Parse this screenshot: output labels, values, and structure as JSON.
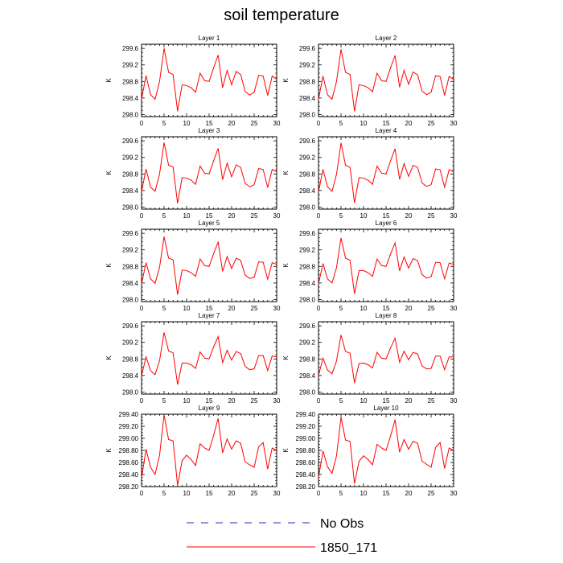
{
  "title": "soil temperature",
  "legend": [
    {
      "label": "No Obs",
      "color": "#2b2bb5",
      "style": "dashed"
    },
    {
      "label": "1850_171",
      "color": "#ff0000",
      "style": "solid"
    }
  ],
  "chart_data": [
    {
      "type": "line",
      "title": "Layer 1",
      "ylabel": "K",
      "xlim": [
        0,
        30
      ],
      "ylim": [
        297.95,
        299.7
      ],
      "xticks": [
        0,
        5,
        10,
        15,
        20,
        25,
        30
      ],
      "yticks": [
        298.0,
        298.4,
        298.8,
        299.2,
        299.6
      ],
      "ytick_labels": [
        "298.0",
        "298.4",
        "298.8",
        "299.2",
        "299.6"
      ],
      "x": [
        0,
        1,
        2,
        3,
        4,
        5,
        6,
        7,
        8,
        9,
        10,
        11,
        12,
        13,
        14,
        15,
        16,
        17,
        18,
        19,
        20,
        21,
        22,
        23,
        24,
        25,
        26,
        27,
        28,
        29,
        30
      ],
      "series": [
        {
          "name": "1850_171",
          "values": [
            298.37,
            298.94,
            298.48,
            298.37,
            298.8,
            299.6,
            299.02,
            298.97,
            298.08,
            298.72,
            298.7,
            298.65,
            298.54,
            299.0,
            298.82,
            298.8,
            299.13,
            299.44,
            298.65,
            299.07,
            298.72,
            299.04,
            298.97,
            298.56,
            298.47,
            298.54,
            298.95,
            298.93,
            298.46,
            298.93,
            298.85
          ]
        }
      ]
    },
    {
      "type": "line",
      "title": "Layer 2",
      "ylabel": "K",
      "xlim": [
        0,
        30
      ],
      "ylim": [
        297.95,
        299.7
      ],
      "xticks": [
        0,
        5,
        10,
        15,
        20,
        25,
        30
      ],
      "yticks": [
        298.0,
        298.4,
        298.8,
        299.2,
        299.6
      ],
      "ytick_labels": [
        "298.0",
        "298.4",
        "298.8",
        "299.2",
        "299.6"
      ],
      "x": [
        0,
        1,
        2,
        3,
        4,
        5,
        6,
        7,
        8,
        9,
        10,
        11,
        12,
        13,
        14,
        15,
        16,
        17,
        18,
        19,
        20,
        21,
        22,
        23,
        24,
        25,
        26,
        27,
        28,
        29,
        30
      ],
      "series": [
        {
          "name": "1850_171",
          "values": [
            298.37,
            298.93,
            298.48,
            298.37,
            298.8,
            299.58,
            299.02,
            298.97,
            298.08,
            298.72,
            298.7,
            298.65,
            298.55,
            299.0,
            298.82,
            298.8,
            299.13,
            299.43,
            298.66,
            299.07,
            298.73,
            299.03,
            298.96,
            298.57,
            298.48,
            298.54,
            298.94,
            298.92,
            298.46,
            298.92,
            298.85
          ]
        }
      ]
    },
    {
      "type": "line",
      "title": "Layer 3",
      "ylabel": "K",
      "xlim": [
        0,
        30
      ],
      "ylim": [
        297.95,
        299.7
      ],
      "xticks": [
        0,
        5,
        10,
        15,
        20,
        25,
        30
      ],
      "yticks": [
        298.0,
        298.4,
        298.8,
        299.2,
        299.6
      ],
      "ytick_labels": [
        "298.0",
        "298.4",
        "298.8",
        "299.2",
        "299.6"
      ],
      "x": [
        0,
        1,
        2,
        3,
        4,
        5,
        6,
        7,
        8,
        9,
        10,
        11,
        12,
        13,
        14,
        15,
        16,
        17,
        18,
        19,
        20,
        21,
        22,
        23,
        24,
        25,
        26,
        27,
        28,
        29,
        30
      ],
      "series": [
        {
          "name": "1850_171",
          "values": [
            298.37,
            298.92,
            298.48,
            298.38,
            298.8,
            299.56,
            299.01,
            298.97,
            298.09,
            298.71,
            298.7,
            298.65,
            298.55,
            298.99,
            298.82,
            298.8,
            299.12,
            299.42,
            298.66,
            299.06,
            298.73,
            299.02,
            298.96,
            298.57,
            298.49,
            298.54,
            298.93,
            298.91,
            298.47,
            298.91,
            298.85
          ]
        }
      ]
    },
    {
      "type": "line",
      "title": "Layer 4",
      "ylabel": "K",
      "xlim": [
        0,
        30
      ],
      "ylim": [
        297.95,
        299.7
      ],
      "xticks": [
        0,
        5,
        10,
        15,
        20,
        25,
        30
      ],
      "yticks": [
        298.0,
        298.4,
        298.8,
        299.2,
        299.6
      ],
      "ytick_labels": [
        "298.0",
        "298.4",
        "298.8",
        "299.2",
        "299.6"
      ],
      "x": [
        0,
        1,
        2,
        3,
        4,
        5,
        6,
        7,
        8,
        9,
        10,
        11,
        12,
        13,
        14,
        15,
        16,
        17,
        18,
        19,
        20,
        21,
        22,
        23,
        24,
        25,
        26,
        27,
        28,
        29,
        30
      ],
      "series": [
        {
          "name": "1850_171",
          "values": [
            298.37,
            298.91,
            298.49,
            298.38,
            298.79,
            299.55,
            299.01,
            298.96,
            298.1,
            298.71,
            298.7,
            298.65,
            298.55,
            298.99,
            298.82,
            298.8,
            299.12,
            299.41,
            298.67,
            299.05,
            298.74,
            299.01,
            298.96,
            298.58,
            298.5,
            298.54,
            298.92,
            298.9,
            298.48,
            298.9,
            298.85
          ]
        }
      ]
    },
    {
      "type": "line",
      "title": "Layer 5",
      "ylabel": "K",
      "xlim": [
        0,
        30
      ],
      "ylim": [
        297.95,
        299.7
      ],
      "xticks": [
        0,
        5,
        10,
        15,
        20,
        25,
        30
      ],
      "yticks": [
        298.0,
        298.4,
        298.8,
        299.2,
        299.6
      ],
      "ytick_labels": [
        "298.0",
        "298.4",
        "298.8",
        "299.2",
        "299.6"
      ],
      "x": [
        0,
        1,
        2,
        3,
        4,
        5,
        6,
        7,
        8,
        9,
        10,
        11,
        12,
        13,
        14,
        15,
        16,
        17,
        18,
        19,
        20,
        21,
        22,
        23,
        24,
        25,
        26,
        27,
        28,
        29,
        30
      ],
      "series": [
        {
          "name": "1850_171",
          "values": [
            298.38,
            298.89,
            298.5,
            298.39,
            298.78,
            299.52,
            299.0,
            298.96,
            298.12,
            298.71,
            298.7,
            298.65,
            298.56,
            298.98,
            298.82,
            298.8,
            299.11,
            299.39,
            298.68,
            299.04,
            298.75,
            299.0,
            298.95,
            298.59,
            298.51,
            298.54,
            298.91,
            298.9,
            298.49,
            298.89,
            298.85
          ]
        }
      ]
    },
    {
      "type": "line",
      "title": "Layer 6",
      "ylabel": "K",
      "xlim": [
        0,
        30
      ],
      "ylim": [
        297.95,
        299.7
      ],
      "xticks": [
        0,
        5,
        10,
        15,
        20,
        25,
        30
      ],
      "yticks": [
        298.0,
        298.4,
        298.8,
        299.2,
        299.6
      ],
      "ytick_labels": [
        "298.0",
        "298.4",
        "298.8",
        "299.2",
        "299.6"
      ],
      "x": [
        0,
        1,
        2,
        3,
        4,
        5,
        6,
        7,
        8,
        9,
        10,
        11,
        12,
        13,
        14,
        15,
        16,
        17,
        18,
        19,
        20,
        21,
        22,
        23,
        24,
        25,
        26,
        27,
        28,
        29,
        30
      ],
      "series": [
        {
          "name": "1850_171",
          "values": [
            298.38,
            298.87,
            298.5,
            298.4,
            298.77,
            299.49,
            299.0,
            298.95,
            298.14,
            298.7,
            298.7,
            298.65,
            298.56,
            298.98,
            298.82,
            298.8,
            299.1,
            299.37,
            298.69,
            299.03,
            298.76,
            298.99,
            298.94,
            298.6,
            298.52,
            298.55,
            298.9,
            298.89,
            298.5,
            298.88,
            298.85
          ]
        }
      ]
    },
    {
      "type": "line",
      "title": "Layer 7",
      "ylabel": "K",
      "xlim": [
        0,
        30
      ],
      "ylim": [
        297.95,
        299.7
      ],
      "xticks": [
        0,
        5,
        10,
        15,
        20,
        25,
        30
      ],
      "yticks": [
        298.0,
        298.4,
        298.8,
        299.2,
        299.6
      ],
      "ytick_labels": [
        "298.0",
        "298.4",
        "298.8",
        "299.2",
        "299.6"
      ],
      "x": [
        0,
        1,
        2,
        3,
        4,
        5,
        6,
        7,
        8,
        9,
        10,
        11,
        12,
        13,
        14,
        15,
        16,
        17,
        18,
        19,
        20,
        21,
        22,
        23,
        24,
        25,
        26,
        27,
        28,
        29,
        30
      ],
      "series": [
        {
          "name": "1850_171",
          "values": [
            298.39,
            298.85,
            298.52,
            298.42,
            298.76,
            299.44,
            298.99,
            298.95,
            298.18,
            298.7,
            298.7,
            298.66,
            298.57,
            298.97,
            298.82,
            298.8,
            299.09,
            299.34,
            298.71,
            299.01,
            298.77,
            298.98,
            298.93,
            298.62,
            298.54,
            298.56,
            298.88,
            298.88,
            298.52,
            298.87,
            298.85
          ]
        }
      ]
    },
    {
      "type": "line",
      "title": "Layer 8",
      "ylabel": "K",
      "xlim": [
        0,
        30
      ],
      "ylim": [
        297.95,
        299.7
      ],
      "xticks": [
        0,
        5,
        10,
        15,
        20,
        25,
        30
      ],
      "yticks": [
        298.0,
        298.4,
        298.8,
        299.2,
        299.6
      ],
      "ytick_labels": [
        "298.0",
        "298.4",
        "298.8",
        "299.2",
        "299.6"
      ],
      "x": [
        0,
        1,
        2,
        3,
        4,
        5,
        6,
        7,
        8,
        9,
        10,
        11,
        12,
        13,
        14,
        15,
        16,
        17,
        18,
        19,
        20,
        21,
        22,
        23,
        24,
        25,
        26,
        27,
        28,
        29,
        30
      ],
      "series": [
        {
          "name": "1850_171",
          "values": [
            298.4,
            298.82,
            298.53,
            298.44,
            298.75,
            299.38,
            298.98,
            298.94,
            298.22,
            298.69,
            298.7,
            298.66,
            298.58,
            298.96,
            298.82,
            298.8,
            299.07,
            299.3,
            298.72,
            298.99,
            298.78,
            298.96,
            298.92,
            298.63,
            298.56,
            298.57,
            298.87,
            298.87,
            298.54,
            298.85,
            298.85
          ]
        }
      ]
    },
    {
      "type": "line",
      "title": "Layer 9",
      "ylabel": "K",
      "xlim": [
        0,
        30
      ],
      "ylim": [
        298.2,
        299.4
      ],
      "xticks": [
        0,
        5,
        10,
        15,
        20,
        25,
        30
      ],
      "yticks": [
        298.2,
        298.4,
        298.6,
        298.8,
        299.0,
        299.2,
        299.4
      ],
      "ytick_labels": [
        "298.20",
        "298.40",
        "298.60",
        "298.80",
        "299.00",
        "299.20",
        "299.40"
      ],
      "x": [
        0,
        1,
        2,
        3,
        4,
        5,
        6,
        7,
        8,
        9,
        10,
        11,
        12,
        13,
        14,
        15,
        16,
        17,
        18,
        19,
        20,
        21,
        22,
        23,
        24,
        25,
        26,
        27,
        28,
        29,
        30
      ],
      "series": [
        {
          "name": "1850_171",
          "values": [
            298.34,
            298.82,
            298.52,
            298.4,
            298.72,
            299.39,
            298.98,
            298.96,
            298.22,
            298.63,
            298.72,
            298.65,
            298.55,
            298.91,
            298.84,
            298.8,
            299.05,
            299.33,
            298.76,
            298.99,
            298.82,
            298.96,
            298.92,
            298.61,
            298.56,
            298.52,
            298.86,
            298.93,
            298.49,
            298.84,
            298.8
          ]
        }
      ]
    },
    {
      "type": "line",
      "title": "Layer 10",
      "ylabel": "K",
      "xlim": [
        0,
        30
      ],
      "ylim": [
        298.2,
        299.4
      ],
      "xticks": [
        0,
        5,
        10,
        15,
        20,
        25,
        30
      ],
      "yticks": [
        298.2,
        298.4,
        298.6,
        298.8,
        299.0,
        299.2,
        299.4
      ],
      "ytick_labels": [
        "298.20",
        "298.40",
        "298.60",
        "298.80",
        "299.00",
        "299.20",
        "299.40"
      ],
      "x": [
        0,
        1,
        2,
        3,
        4,
        5,
        6,
        7,
        8,
        9,
        10,
        11,
        12,
        13,
        14,
        15,
        16,
        17,
        18,
        19,
        20,
        21,
        22,
        23,
        24,
        25,
        26,
        27,
        28,
        29,
        30
      ],
      "series": [
        {
          "name": "1850_171",
          "values": [
            298.35,
            298.79,
            298.53,
            298.42,
            298.71,
            299.35,
            298.97,
            298.95,
            298.25,
            298.62,
            298.71,
            298.65,
            298.56,
            298.9,
            298.84,
            298.8,
            299.04,
            299.31,
            298.77,
            298.98,
            298.82,
            298.95,
            298.92,
            298.62,
            298.57,
            298.52,
            298.85,
            298.93,
            298.5,
            298.84,
            298.8
          ]
        }
      ]
    }
  ]
}
